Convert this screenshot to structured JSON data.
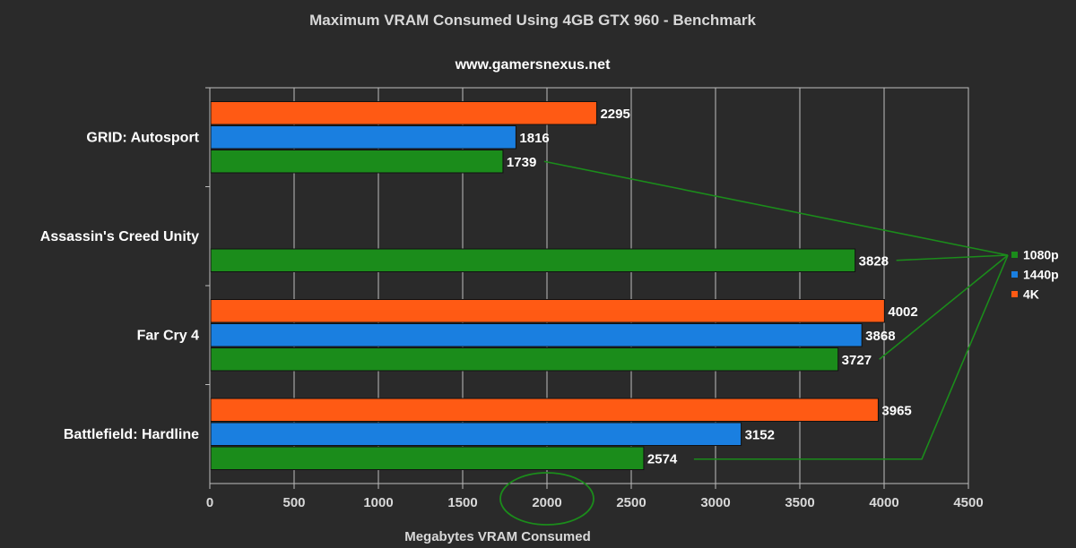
{
  "chart_data": {
    "type": "bar",
    "orientation": "horizontal",
    "title": "Maximum VRAM Consumed Using 4GB GTX 960 - Benchmark",
    "subtitle": "www.gamersnexus.net",
    "xlabel": "Megabytes VRAM Consumed",
    "ylabel": "",
    "xlim": [
      0,
      4500
    ],
    "xticks": [
      0,
      500,
      1000,
      1500,
      2000,
      2500,
      3000,
      3500,
      4000,
      4500
    ],
    "grid": true,
    "legend_position": "right",
    "categories": [
      "GRID: Autosport",
      "Assassin's Creed Unity",
      "Far Cry 4",
      "Battlefield: Hardline"
    ],
    "series": [
      {
        "name": "4K",
        "color": "#ff5a14",
        "values": [
          2295,
          null,
          4002,
          3965
        ]
      },
      {
        "name": "1440p",
        "color": "#1a7fe0",
        "values": [
          1816,
          null,
          3868,
          3152
        ]
      },
      {
        "name": "1080p",
        "color": "#1b8c1b",
        "values": [
          1739,
          3828,
          3727,
          2574
        ]
      }
    ],
    "legend_order": [
      "1080p",
      "1440p",
      "4K"
    ],
    "annotations": {
      "highlight_tick": 2000,
      "highlight_color": "#1b8c1b"
    }
  }
}
